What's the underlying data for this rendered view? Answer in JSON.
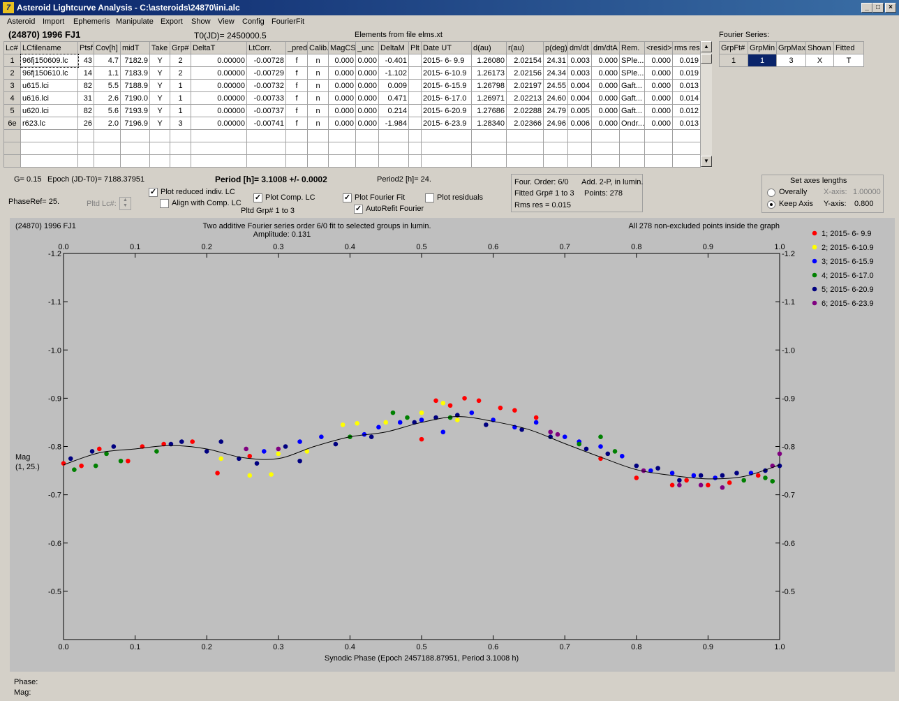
{
  "window": {
    "title": "Asteroid Lightcurve Analysis - C:\\asteroids\\24870\\ini.alc",
    "icon": "app-logo-icon"
  },
  "menu": [
    "Asteroid",
    "Import",
    "Ephemeris",
    "Manipulate",
    "Export",
    "Show",
    "View",
    "Config",
    "FourierFit"
  ],
  "header": {
    "asteroid": "(24870) 1996 FJ1",
    "t0": "T0(JD)= 2450000.5",
    "elements": "Elements from file elms.xt"
  },
  "lc_table": {
    "columns": [
      "Lc#",
      "LCfilename",
      "Ptsf",
      "Cov[h]",
      "midT",
      "Take",
      "Grp#",
      "DeltaT",
      "LtCorr.",
      "_pred.",
      "Calib.",
      "MagCS",
      "_unc",
      "DeltaM",
      "Plt",
      "Date UT",
      "d(au)",
      "r(au)",
      "p(deg)",
      "dm/dt",
      "dm/dtA",
      "Rem.",
      "<resid>",
      "rms res"
    ],
    "rows": [
      [
        "1",
        "96fj150609.lc",
        "43",
        "4.7",
        "7182.9",
        "Y",
        "2",
        "0.00000",
        "-0.00728",
        "f",
        "n",
        "0.000",
        "0.000",
        "-0.401",
        "",
        "2015- 6- 9.9",
        "1.26080",
        "2.02154",
        "24.31",
        "0.003",
        "0.000",
        "SPle...",
        "0.000",
        "0.019"
      ],
      [
        "2",
        "96fj150610.lc",
        "14",
        "1.1",
        "7183.9",
        "Y",
        "2",
        "0.00000",
        "-0.00729",
        "f",
        "n",
        "0.000",
        "0.000",
        "-1.102",
        "",
        "2015- 6-10.9",
        "1.26173",
        "2.02156",
        "24.34",
        "0.003",
        "0.000",
        "SPle...",
        "0.000",
        "0.019"
      ],
      [
        "3",
        "u615.lci",
        "82",
        "5.5",
        "7188.9",
        "Y",
        "1",
        "0.00000",
        "-0.00732",
        "f",
        "n",
        "0.000",
        "0.000",
        "0.009",
        "",
        "2015- 6-15.9",
        "1.26798",
        "2.02197",
        "24.55",
        "0.004",
        "0.000",
        "Gaft...",
        "0.000",
        "0.013"
      ],
      [
        "4",
        "u616.lci",
        "31",
        "2.6",
        "7190.0",
        "Y",
        "1",
        "0.00000",
        "-0.00733",
        "f",
        "n",
        "0.000",
        "0.000",
        "0.471",
        "",
        "2015- 6-17.0",
        "1.26971",
        "2.02213",
        "24.60",
        "0.004",
        "0.000",
        "Gaft...",
        "0.000",
        "0.014"
      ],
      [
        "5",
        "u620.lci",
        "82",
        "5.6",
        "7193.9",
        "Y",
        "1",
        "0.00000",
        "-0.00737",
        "f",
        "n",
        "0.000",
        "0.000",
        "0.214",
        "",
        "2015- 6-20.9",
        "1.27686",
        "2.02288",
        "24.79",
        "0.005",
        "0.000",
        "Gaft...",
        "0.000",
        "0.012"
      ],
      [
        "6e",
        "r623.lc",
        "26",
        "2.0",
        "7196.9",
        "Y",
        "3",
        "0.00000",
        "-0.00741",
        "f",
        "n",
        "0.000",
        "0.000",
        "-1.984",
        "",
        "2015- 6-23.9",
        "1.28340",
        "2.02366",
        "24.96",
        "0.006",
        "0.000",
        "Ondr...",
        "0.000",
        "0.013"
      ]
    ]
  },
  "fourier_table": {
    "title": "Fourier Series:",
    "columns": [
      "GrpFt#",
      "GrpMin",
      "GrpMax",
      "Shown",
      "Fitted"
    ],
    "rows": [
      [
        "1",
        "1",
        "3",
        "X",
        "T"
      ]
    ]
  },
  "params": {
    "g": "G= 0.15",
    "epoch": "Epoch (JD-T0)= 7188.37951",
    "period": "Period [h]= 3.1008 +/- 0.0002",
    "period2": "Period2 [h]= 24.",
    "phaseref": "PhaseRef= 25.",
    "pltd_lc": "Pltd Lc#:",
    "pltd_grp": "Pltd Grp#  1   to   3",
    "cb_reduced": "Plot reduced indiv. LC",
    "cb_align": "Align with Comp. LC",
    "cb_comp": "Plot Comp. LC",
    "cb_fourier": "Plot Fourier Fit",
    "cb_autorefit": "AutoRefit Fourier",
    "cb_resid": "Plot residuals",
    "fit_order": "Four. Order:  6/0",
    "fit_add": "Add. 2-P, in lumin.",
    "fit_grp": "Fitted Grp# 1 to 3",
    "fit_points": "Points: 278",
    "fit_rms": "Rms res     = 0.015",
    "axes_title": "Set axes lengths",
    "axes_overall": "Overally",
    "axes_keep": "Keep Axis",
    "axes_x_label": "X-axis:",
    "axes_x_val": "1.00000",
    "axes_y_label": "Y-axis:",
    "axes_y_val": "0.800"
  },
  "footer": {
    "phase": "Phase:",
    "mag": "Mag:"
  },
  "chart_data": {
    "type": "scatter",
    "title": "Two additive Fourier series order 6/0 fit to selected groups in lumin.",
    "subtitle": "Amplitude: 0.131",
    "corner_left": "(24870) 1996 FJ1",
    "corner_right": "All 278 non-excluded points inside the graph",
    "xlabel": "Synodic Phase (Epoch 2457188.87951, Period 3.1008 h)",
    "ylabel": "Mag",
    "ylabel2": "(1, 25.)",
    "xlim": [
      0,
      1
    ],
    "ylim": [
      -1.2,
      -0.4
    ],
    "x_ticks": [
      "0.0",
      "0.1",
      "0.2",
      "0.3",
      "0.4",
      "0.5",
      "0.6",
      "0.7",
      "0.8",
      "0.9",
      "1.0"
    ],
    "y_ticks": [
      "-1.2",
      "-1.1",
      "-1.0",
      "-0.9",
      "-0.8",
      "-0.7",
      "-0.6",
      "-0.5"
    ],
    "grid": false,
    "legend_position": "right",
    "fit_curve": {
      "x": [
        0,
        0.05,
        0.1,
        0.15,
        0.2,
        0.25,
        0.3,
        0.35,
        0.4,
        0.45,
        0.5,
        0.55,
        0.6,
        0.65,
        0.7,
        0.75,
        0.8,
        0.85,
        0.9,
        0.95,
        1.0
      ],
      "y": [
        -0.762,
        -0.787,
        -0.795,
        -0.802,
        -0.795,
        -0.777,
        -0.775,
        -0.8,
        -0.82,
        -0.83,
        -0.85,
        -0.862,
        -0.852,
        -0.835,
        -0.806,
        -0.778,
        -0.752,
        -0.74,
        -0.733,
        -0.738,
        -0.762
      ]
    },
    "series": [
      {
        "name": "1; 2015- 6- 9.9",
        "color": "#ff0000",
        "points": [
          [
            0.0,
            -0.765
          ],
          [
            0.025,
            -0.76
          ],
          [
            0.05,
            -0.795
          ],
          [
            0.09,
            -0.77
          ],
          [
            0.11,
            -0.8
          ],
          [
            0.14,
            -0.805
          ],
          [
            0.18,
            -0.81
          ],
          [
            0.215,
            -0.745
          ],
          [
            0.26,
            -0.78
          ],
          [
            0.5,
            -0.815
          ],
          [
            0.52,
            -0.895
          ],
          [
            0.54,
            -0.885
          ],
          [
            0.56,
            -0.9
          ],
          [
            0.58,
            -0.895
          ],
          [
            0.61,
            -0.88
          ],
          [
            0.63,
            -0.875
          ],
          [
            0.66,
            -0.86
          ],
          [
            0.75,
            -0.775
          ],
          [
            0.8,
            -0.735
          ],
          [
            0.85,
            -0.72
          ],
          [
            0.87,
            -0.73
          ],
          [
            0.9,
            -0.72
          ],
          [
            0.93,
            -0.725
          ],
          [
            0.97,
            -0.74
          ]
        ]
      },
      {
        "name": "2; 2015- 6-10.9",
        "color": "#ffff00",
        "points": [
          [
            0.22,
            -0.775
          ],
          [
            0.26,
            -0.74
          ],
          [
            0.29,
            -0.742
          ],
          [
            0.3,
            -0.785
          ],
          [
            0.34,
            -0.79
          ],
          [
            0.36,
            -0.82
          ],
          [
            0.39,
            -0.845
          ],
          [
            0.41,
            -0.848
          ],
          [
            0.45,
            -0.85
          ],
          [
            0.5,
            -0.87
          ],
          [
            0.53,
            -0.89
          ],
          [
            0.55,
            -0.855
          ]
        ]
      },
      {
        "name": "3; 2015- 6-15.9",
        "color": "#0000ff",
        "points": [
          [
            0.28,
            -0.79
          ],
          [
            0.33,
            -0.81
          ],
          [
            0.36,
            -0.82
          ],
          [
            0.42,
            -0.825
          ],
          [
            0.44,
            -0.84
          ],
          [
            0.47,
            -0.85
          ],
          [
            0.5,
            -0.855
          ],
          [
            0.53,
            -0.83
          ],
          [
            0.57,
            -0.87
          ],
          [
            0.6,
            -0.855
          ],
          [
            0.63,
            -0.84
          ],
          [
            0.66,
            -0.85
          ],
          [
            0.7,
            -0.82
          ],
          [
            0.72,
            -0.81
          ],
          [
            0.75,
            -0.8
          ],
          [
            0.78,
            -0.78
          ],
          [
            0.82,
            -0.75
          ],
          [
            0.85,
            -0.745
          ],
          [
            0.88,
            -0.74
          ],
          [
            0.91,
            -0.735
          ],
          [
            0.96,
            -0.745
          ]
        ]
      },
      {
        "name": "4; 2015- 6-17.0",
        "color": "#008000",
        "points": [
          [
            0.015,
            -0.752
          ],
          [
            0.045,
            -0.76
          ],
          [
            0.08,
            -0.77
          ],
          [
            0.06,
            -0.785
          ],
          [
            0.13,
            -0.79
          ],
          [
            0.4,
            -0.82
          ],
          [
            0.46,
            -0.87
          ],
          [
            0.48,
            -0.86
          ],
          [
            0.54,
            -0.86
          ],
          [
            0.72,
            -0.805
          ],
          [
            0.75,
            -0.82
          ],
          [
            0.77,
            -0.79
          ],
          [
            0.95,
            -0.73
          ],
          [
            0.98,
            -0.735
          ],
          [
            0.99,
            -0.728
          ]
        ]
      },
      {
        "name": "5; 2015- 6-20.9",
        "color": "#000080",
        "points": [
          [
            0.01,
            -0.775
          ],
          [
            0.04,
            -0.79
          ],
          [
            0.07,
            -0.8
          ],
          [
            0.15,
            -0.805
          ],
          [
            0.165,
            -0.81
          ],
          [
            0.2,
            -0.79
          ],
          [
            0.22,
            -0.81
          ],
          [
            0.245,
            -0.775
          ],
          [
            0.27,
            -0.765
          ],
          [
            0.31,
            -0.8
          ],
          [
            0.33,
            -0.77
          ],
          [
            0.38,
            -0.805
          ],
          [
            0.43,
            -0.82
          ],
          [
            0.49,
            -0.85
          ],
          [
            0.52,
            -0.86
          ],
          [
            0.55,
            -0.865
          ],
          [
            0.59,
            -0.845
          ],
          [
            0.64,
            -0.835
          ],
          [
            0.68,
            -0.82
          ],
          [
            0.73,
            -0.795
          ],
          [
            0.76,
            -0.785
          ],
          [
            0.8,
            -0.76
          ],
          [
            0.83,
            -0.755
          ],
          [
            0.86,
            -0.73
          ],
          [
            0.89,
            -0.74
          ],
          [
            0.92,
            -0.74
          ],
          [
            0.94,
            -0.745
          ],
          [
            0.98,
            -0.75
          ],
          [
            1.0,
            -0.76
          ]
        ]
      },
      {
        "name": "6; 2015- 6-23.9",
        "color": "#800080",
        "points": [
          [
            0.255,
            -0.795
          ],
          [
            0.3,
            -0.795
          ],
          [
            0.68,
            -0.83
          ],
          [
            0.69,
            -0.825
          ],
          [
            0.81,
            -0.75
          ],
          [
            0.86,
            -0.72
          ],
          [
            0.89,
            -0.72
          ],
          [
            0.92,
            -0.715
          ],
          [
            0.99,
            -0.76
          ],
          [
            1.0,
            -0.785
          ]
        ]
      }
    ]
  }
}
